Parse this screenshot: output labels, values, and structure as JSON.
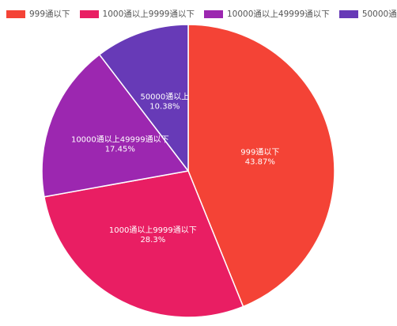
{
  "chart_data": {
    "type": "pie",
    "categories": [
      "999通以下",
      "1000通以上9999通以下",
      "10000通以上49999通以下",
      "50000通以上"
    ],
    "values": [
      43.87,
      28.3,
      17.45,
      10.38
    ],
    "value_labels": [
      "43.87%",
      "28.3%",
      "17.45%",
      "10.38%"
    ],
    "colors": [
      "#f44336",
      "#e91e63",
      "#9c27b0",
      "#673ab7"
    ],
    "legend": "top"
  }
}
